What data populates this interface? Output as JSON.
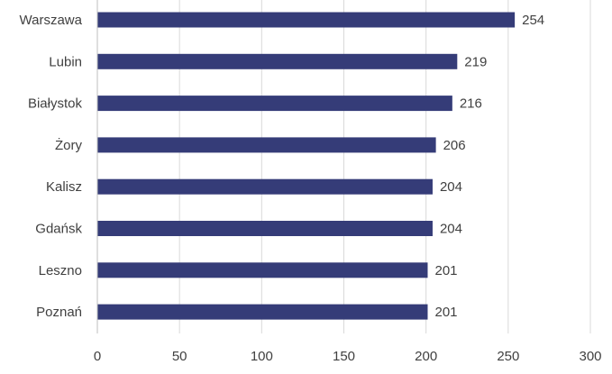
{
  "chart_data": {
    "type": "bar",
    "orientation": "horizontal",
    "categories": [
      "Warszawa",
      "Lubin",
      "Białystok",
      "Żory",
      "Kalisz",
      "Gdańsk",
      "Leszno",
      "Poznań"
    ],
    "values": [
      254,
      219,
      216,
      206,
      204,
      204,
      201,
      201
    ],
    "value_labels": [
      "254",
      "219",
      "216",
      "206",
      "204",
      "204",
      "201",
      "201"
    ],
    "title": "",
    "xlabel": "",
    "ylabel": "",
    "xlim": [
      0,
      300
    ],
    "x_ticks": [
      0,
      50,
      100,
      150,
      200,
      250,
      300
    ],
    "x_tick_labels": [
      "0",
      "50",
      "100",
      "150",
      "200",
      "250",
      "300"
    ],
    "grid": "vertical",
    "legend": "none",
    "bar_color": "#353c78",
    "grid_color": "#d9d9d9"
  }
}
